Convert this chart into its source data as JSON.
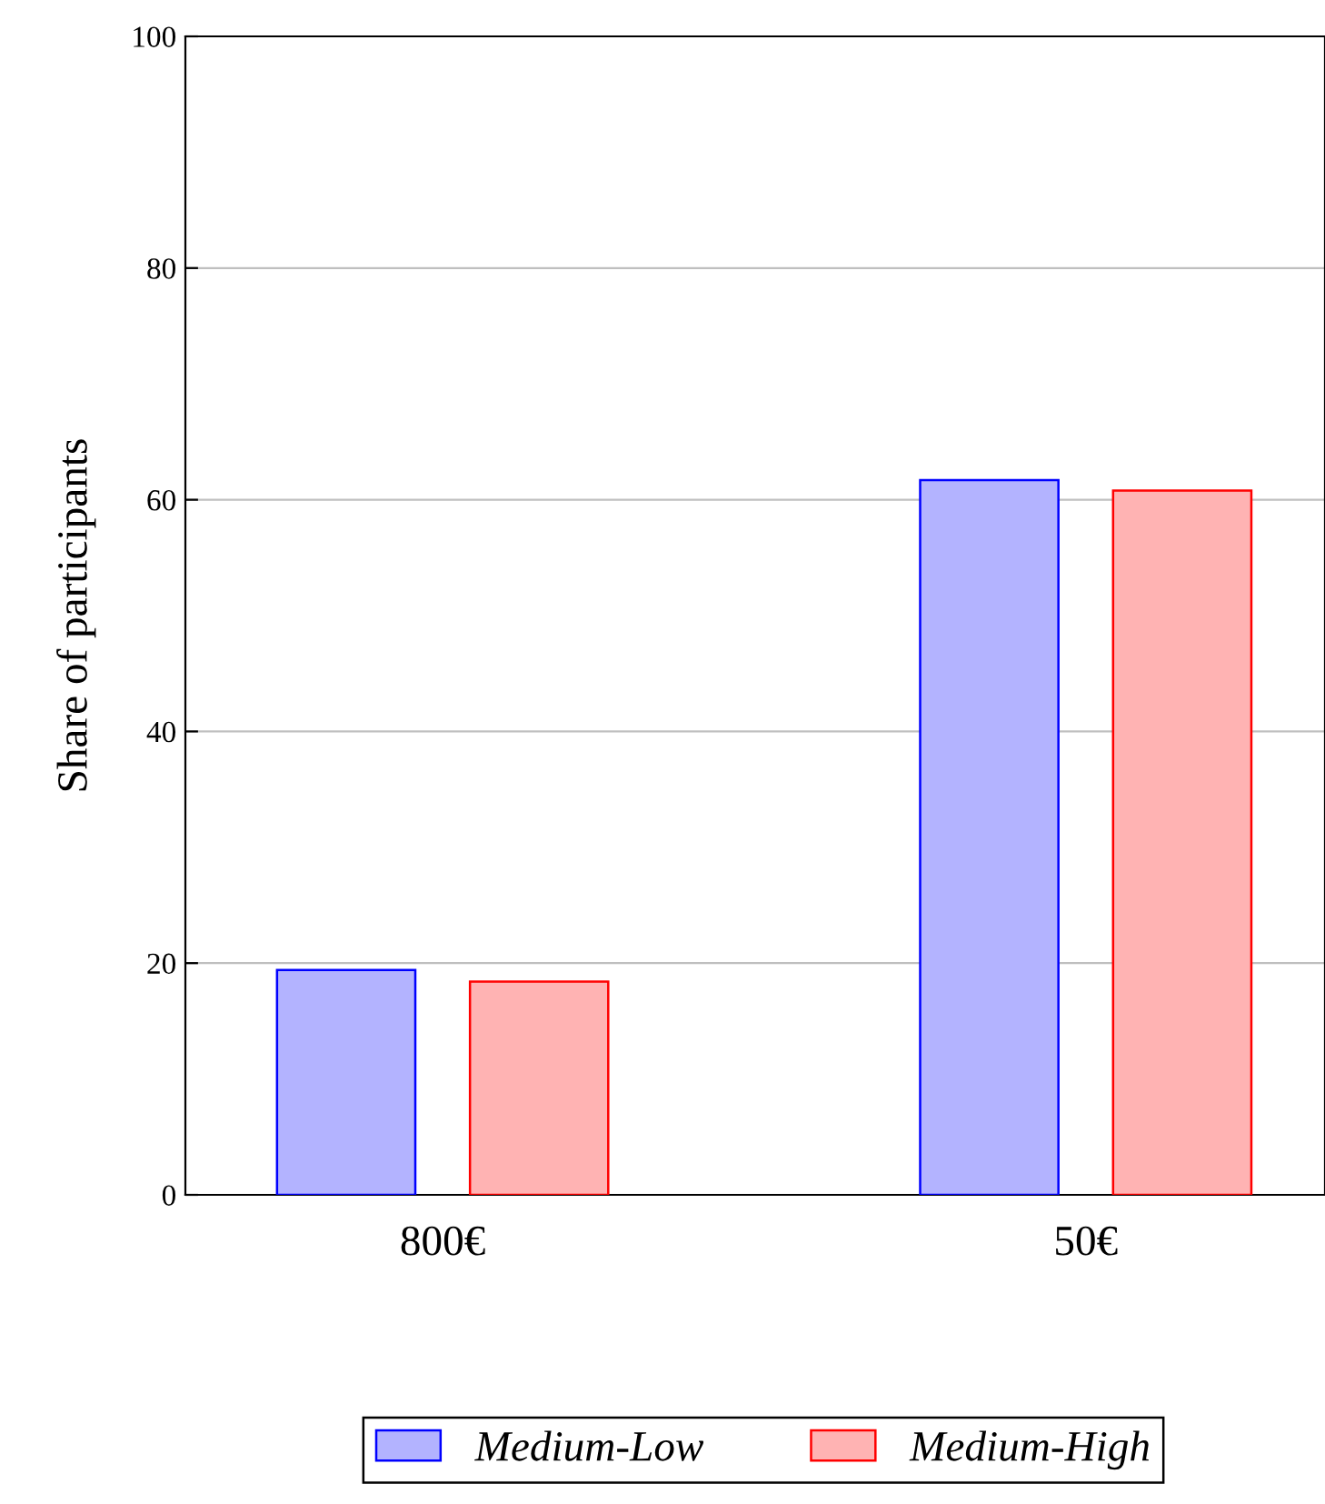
{
  "chart_data": {
    "type": "bar",
    "ylabel": "Share of participants",
    "categories": [
      "800€",
      "50€"
    ],
    "series": [
      {
        "name": "Medium-Low",
        "color": "#b3b3ff",
        "values": [
          19.4,
          61.7
        ]
      },
      {
        "name": "Medium-High",
        "color": "#ffb3b3",
        "values": [
          18.4,
          60.8
        ]
      }
    ],
    "ylim": [
      0,
      100
    ],
    "yticks": [
      0,
      20,
      40,
      60,
      80,
      100
    ],
    "grid": "y",
    "legend": "bottom"
  }
}
